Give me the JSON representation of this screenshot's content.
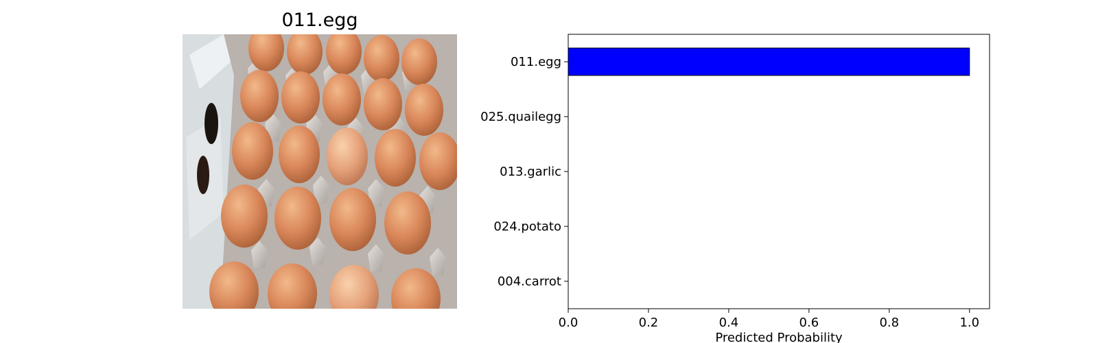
{
  "image_panel": {
    "title": "011.egg",
    "photo_icon": "egg-carton-photo"
  },
  "chart_data": {
    "type": "bar",
    "orientation": "horizontal",
    "categories": [
      "011.egg",
      "025.quailegg",
      "013.garlic",
      "024.potato",
      "004.carrot"
    ],
    "values": [
      1.0,
      0.0,
      0.0,
      0.0,
      0.0
    ],
    "xlabel": "Predicted Probability",
    "ylabel": "",
    "xlim": [
      0,
      1.05
    ],
    "xticks": [
      0.0,
      0.2,
      0.4,
      0.6,
      0.8,
      1.0
    ],
    "xtick_labels": [
      "0.0",
      "0.2",
      "0.4",
      "0.6",
      "0.8",
      "1.0"
    ],
    "grid": false,
    "bar_color": "#0000ff",
    "edge_color": "#000000"
  }
}
